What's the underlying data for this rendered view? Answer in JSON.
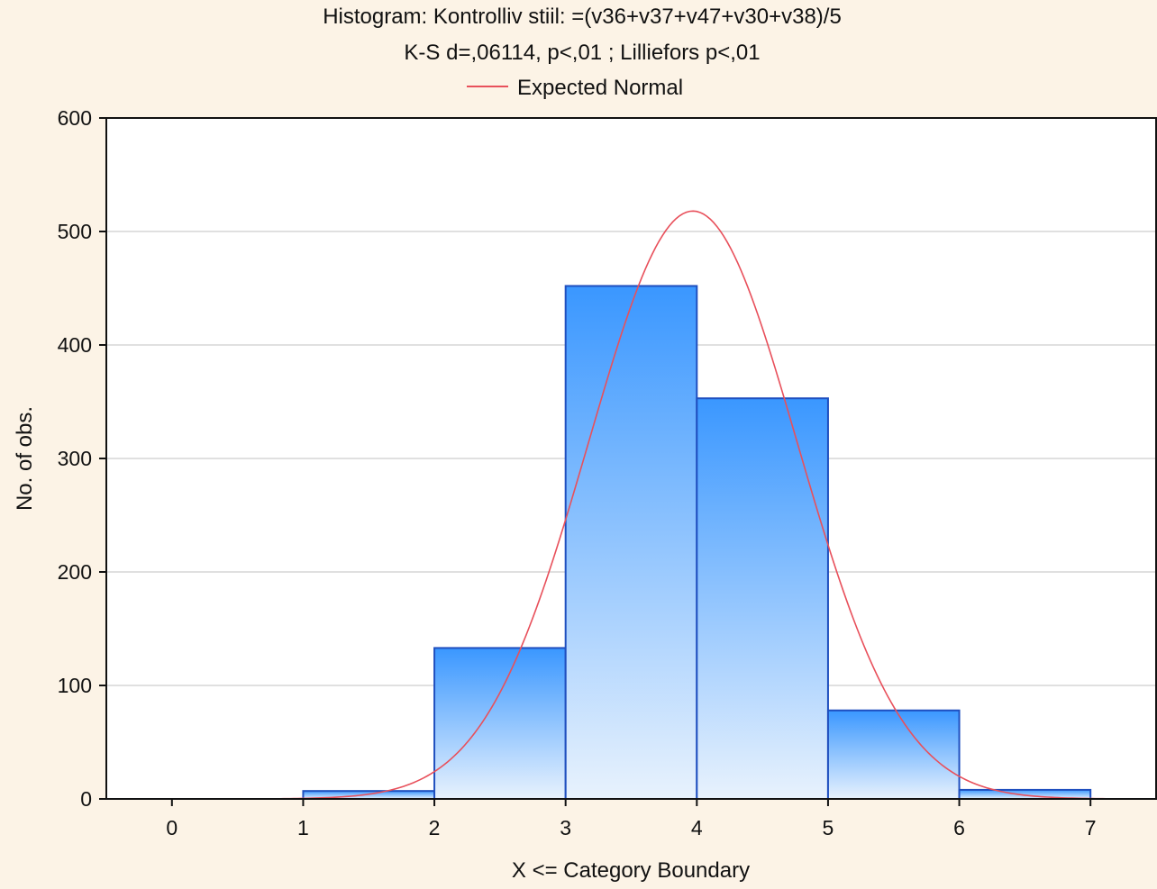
{
  "chart_data": {
    "type": "bar",
    "title": "Histogram: Kontrolliv stiil: =(v36+v37+v47+v30+v38)/5",
    "subtitle": "K-S d=,06114, p<,01 ; Lilliefors p<,01",
    "xlabel": "X <= Category Boundary",
    "ylabel": "No. of obs.",
    "xlim": [
      -0.5,
      7.5
    ],
    "ylim": [
      0,
      600
    ],
    "x_ticks": [
      "0",
      "1",
      "2",
      "3",
      "4",
      "5",
      "6",
      "7"
    ],
    "y_ticks": [
      "0",
      "100",
      "200",
      "300",
      "400",
      "500",
      "600"
    ],
    "bins": [
      {
        "from": 1,
        "to": 2,
        "value": 7
      },
      {
        "from": 2,
        "to": 3,
        "value": 133
      },
      {
        "from": 3,
        "to": 4,
        "value": 452
      },
      {
        "from": 4,
        "to": 5,
        "value": 353
      },
      {
        "from": 5,
        "to": 6,
        "value": 78
      },
      {
        "from": 6,
        "to": 7,
        "value": 8
      }
    ],
    "series": [
      {
        "name": "Expected Normal",
        "type": "line",
        "mean": 3.97,
        "sd": 0.795,
        "peak": 518,
        "color": "#e8505b"
      }
    ],
    "legend_placement": "top-center",
    "grid": true,
    "colors": {
      "bar_top": "#3a97ff",
      "bar_bottom": "#e8f2fd",
      "bar_edge": "#1f4fbf",
      "normal_curve": "#e8505b",
      "background": "#fcf3e6",
      "plot_bg": "#ffffff"
    }
  }
}
